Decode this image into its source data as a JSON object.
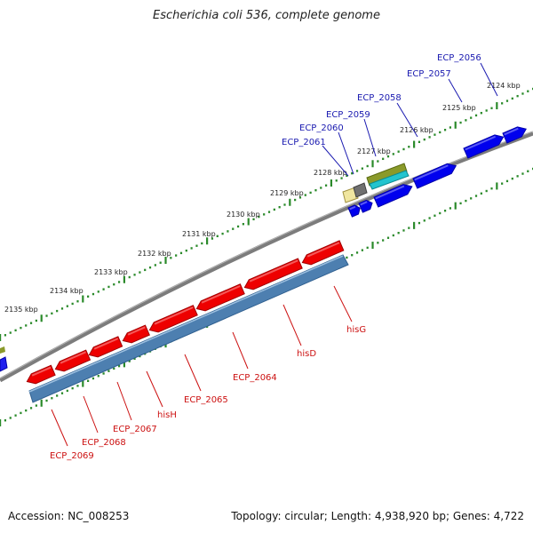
{
  "title": "Escherichia coli 536, complete genome",
  "footer": {
    "accession": "Accession: NC_008253",
    "summary": "Topology: circular; Length: 4,938,920 bp; Genes: 4,722"
  },
  "colors": {
    "forward_gene": "#0000ee",
    "reverse_gene": "#ee0000",
    "reverse_operon": "#4d7fb0",
    "backbone": "#808080",
    "tick": "#2a8a2a",
    "label_forward": "#1a1ab0",
    "label_reverse": "#cc1111"
  },
  "kbp_labels": [
    "2124 kbp",
    "2125 kbp",
    "2126 kbp",
    "2127 kbp",
    "2128 kbp",
    "2129 kbp",
    "2130 kbp",
    "2131 kbp",
    "2132 kbp",
    "2133 kbp",
    "2134 kbp",
    "2135 kbp"
  ],
  "forward_labels": [
    "ECP_2056",
    "ECP_2057",
    "ECP_2058",
    "ECP_2059",
    "ECP_2060",
    "ECP_2061"
  ],
  "reverse_labels": [
    "hisG",
    "hisD",
    "ECP_2064",
    "ECP_2065",
    "hisH",
    "ECP_2067",
    "ECP_2068",
    "ECP_2069"
  ]
}
